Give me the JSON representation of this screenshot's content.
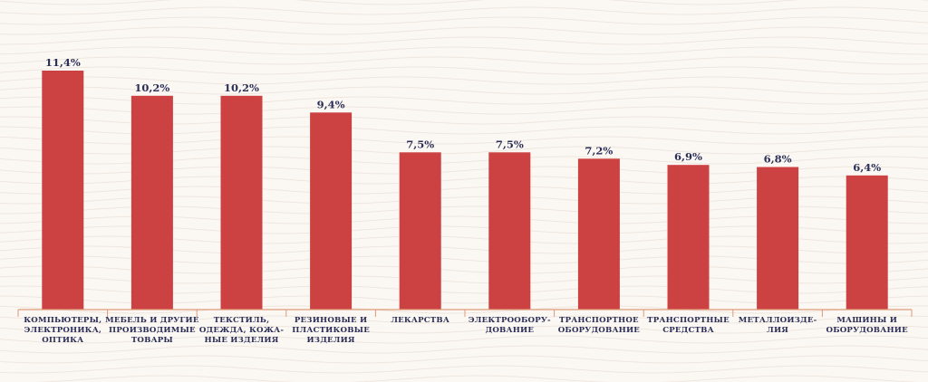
{
  "chart_data": {
    "type": "bar",
    "categories": [
      [
        "КОМПЬЮТЕРЫ,",
        "ЭЛЕКТРОНИКА,",
        "ОПТИКА"
      ],
      [
        "МЕБЕЛЬ И ДРУГИЕ",
        "ПРОИЗВОДИМЫЕ",
        "ТОВАРЫ"
      ],
      [
        "ТЕКСТИЛЬ,",
        "ОДЕЖДА, КОЖА-",
        "НЫЕ ИЗДЕЛИЯ"
      ],
      [
        "РЕЗИНОВЫЕ И",
        "ПЛАСТИКОВЫЕ",
        "ИЗДЕЛИЯ"
      ],
      [
        "ЛЕКАРСТВА"
      ],
      [
        "ЭЛЕКТРООБОРУ-",
        "ДОВАНИЕ"
      ],
      [
        "ТРАНСПОРТНОЕ",
        "ОБОРУДОВАНИЕ"
      ],
      [
        "ТРАНСПОРТНЫЕ",
        "СРЕДСТВА"
      ],
      [
        "МЕТАЛЛОИЗДЕ-",
        "ЛИЯ"
      ],
      [
        "МАШИНЫ И",
        "ОБОРУДОВАНИЕ"
      ]
    ],
    "values": [
      11.4,
      10.2,
      10.2,
      9.4,
      7.5,
      7.5,
      7.2,
      6.9,
      6.8,
      6.4
    ],
    "value_labels": [
      "11,4%",
      "10,2%",
      "10,2%",
      "9,4%",
      "7,5%",
      "7,5%",
      "7,2%",
      "6,9%",
      "6,8%",
      "6,4%"
    ],
    "title": "",
    "xlabel": "",
    "ylabel": "",
    "ylim": [
      0,
      11.4
    ],
    "grid": false,
    "colors": {
      "bar": "#cc4242",
      "text": "#2b2f57",
      "axis": "#dd9a78",
      "background": "#fbf8f4"
    }
  }
}
